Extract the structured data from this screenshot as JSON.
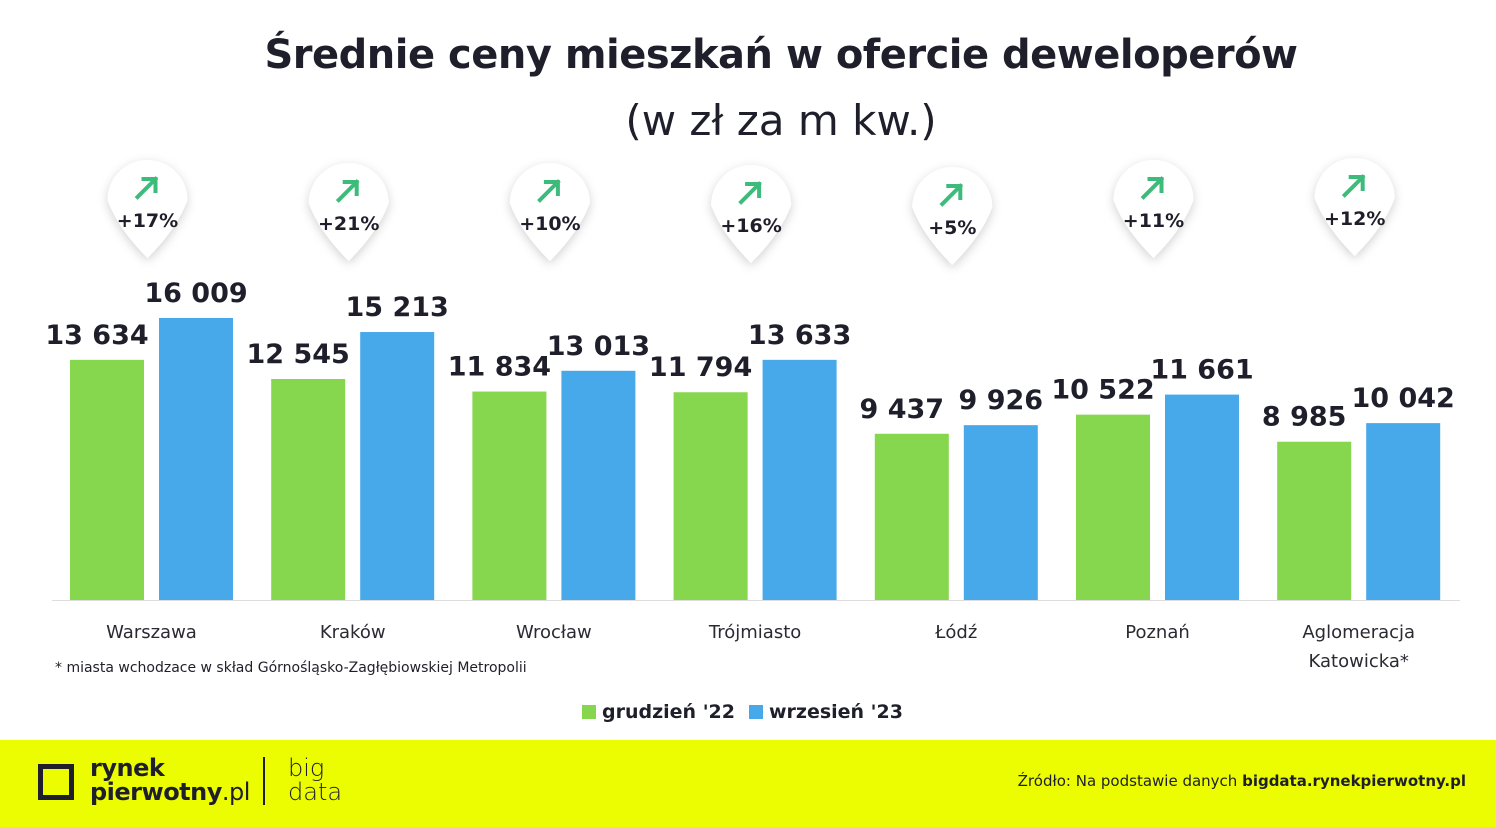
{
  "title": "Średnie ceny mieszkań w ofercie deweloperów",
  "subtitle": "(w zł za m kw.)",
  "footnote": "* miasta wchodzace w skład Górnośląsko-Zagłębiowskiej Metropolii",
  "chart_data": {
    "type": "bar",
    "title": "Średnie ceny mieszkań w ofercie deweloperów",
    "subtitle": "(w zł za m kw.)",
    "categories": [
      "Warszawa",
      "Kraków",
      "Wrocław",
      "Trójmiasto",
      "Łódź",
      "Poznań",
      "Aglomeracja Katowicka*"
    ],
    "series": [
      {
        "name": "grudzień '22",
        "color": "#86d64e",
        "values": [
          13634,
          12545,
          11834,
          11794,
          9437,
          10522,
          8985
        ],
        "labels": [
          "13 634",
          "12 545",
          "11 834",
          "11 794",
          "9 437",
          "10 522",
          "8 985"
        ]
      },
      {
        "name": "wrzesień '23",
        "color": "#48a9ea",
        "values": [
          16009,
          15213,
          13013,
          13633,
          9926,
          11661,
          10042
        ],
        "labels": [
          "16 009",
          "15 213",
          "13 013",
          "13 633",
          "9 926",
          "11 661",
          "10 042"
        ]
      }
    ],
    "changes": [
      "+17%",
      "+21%",
      "+10%",
      "+16%",
      "+5%",
      "+11%",
      "+12%"
    ],
    "change_icon": "arrow-up-right-icon",
    "change_color": "#3dbb7a",
    "ylim": [
      0,
      16009
    ],
    "grid": false,
    "legend": "bottom"
  },
  "footer": {
    "brand_line1": "rynek",
    "brand_line2": "pierwotny",
    "brand_suffix": ".pl",
    "big": "big",
    "data": "data",
    "source_prefix": "Źródło: Na podstawie danych ",
    "source_link": "bigdata.rynekpierwotny.pl",
    "bg": "#ebfd00"
  }
}
